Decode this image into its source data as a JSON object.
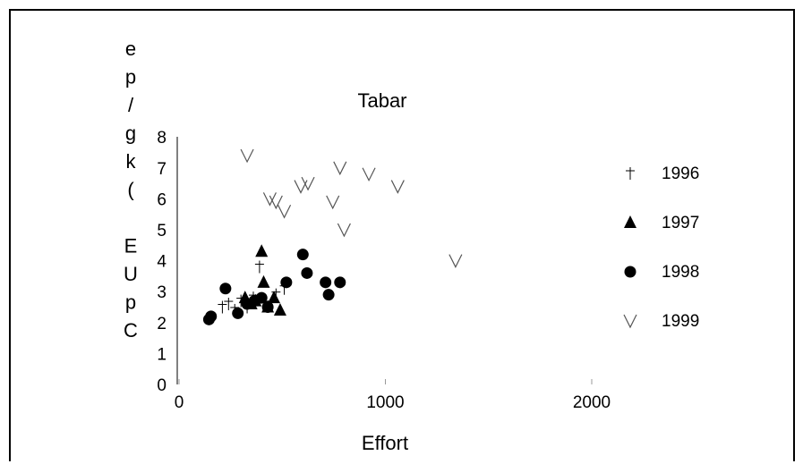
{
  "chart_data": {
    "type": "scatter",
    "title": "Tabar",
    "xlabel": "Effort",
    "ylabel": "CpUE (kg/pe",
    "xlim": [
      0,
      2400
    ],
    "ylim": [
      0,
      8
    ],
    "xticks": [
      0,
      1000,
      2000
    ],
    "yticks": [
      0,
      1,
      2,
      3,
      4,
      5,
      6,
      7,
      8
    ],
    "grid": false,
    "legend_position": "right",
    "series": [
      {
        "name": "1996",
        "marker": "bar",
        "color": "#000000",
        "points": [
          [
            210,
            2.5
          ],
          [
            240,
            2.6
          ],
          [
            270,
            2.4
          ],
          [
            300,
            2.7
          ],
          [
            330,
            2.5
          ],
          [
            360,
            2.8
          ],
          [
            390,
            3.8
          ],
          [
            420,
            2.6
          ],
          [
            470,
            2.9
          ],
          [
            510,
            3.1
          ]
        ]
      },
      {
        "name": "1997",
        "marker": "triangle",
        "color": "#000000",
        "points": [
          [
            320,
            2.8
          ],
          [
            350,
            2.6
          ],
          [
            370,
            2.7
          ],
          [
            400,
            4.3
          ],
          [
            410,
            3.3
          ],
          [
            430,
            2.5
          ],
          [
            460,
            2.8
          ],
          [
            490,
            2.4
          ]
        ]
      },
      {
        "name": "1998",
        "marker": "circle",
        "color": "#000000",
        "points": [
          [
            145,
            2.1
          ],
          [
            155,
            2.2
          ],
          [
            225,
            3.1
          ],
          [
            285,
            2.3
          ],
          [
            330,
            2.6
          ],
          [
            365,
            2.7
          ],
          [
            400,
            2.8
          ],
          [
            430,
            2.5
          ],
          [
            520,
            3.3
          ],
          [
            600,
            4.2
          ],
          [
            620,
            3.6
          ],
          [
            710,
            3.3
          ],
          [
            725,
            2.9
          ],
          [
            780,
            3.3
          ]
        ]
      },
      {
        "name": "1999",
        "marker": "inverted-v",
        "color": "#555555",
        "points": [
          [
            330,
            7.4
          ],
          [
            440,
            6.0
          ],
          [
            470,
            5.9
          ],
          [
            510,
            5.6
          ],
          [
            590,
            6.4
          ],
          [
            625,
            6.5
          ],
          [
            745,
            5.9
          ],
          [
            780,
            7.0
          ],
          [
            800,
            5.0
          ],
          [
            920,
            6.8
          ],
          [
            1060,
            6.4
          ],
          [
            1340,
            4.0
          ]
        ]
      }
    ]
  }
}
